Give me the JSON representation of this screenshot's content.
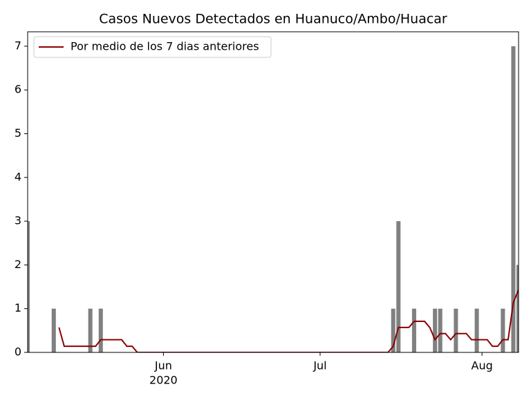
{
  "chart_data": {
    "type": "bar_line",
    "title": "Casos Nuevos Detectados en Huanuco/Ambo/Huacar",
    "x": [
      0,
      1,
      2,
      3,
      4,
      5,
      6,
      7,
      8,
      9,
      10,
      11,
      12,
      13,
      14,
      15,
      16,
      17,
      18,
      19,
      20,
      21,
      22,
      23,
      24,
      25,
      26,
      27,
      28,
      29,
      30,
      31,
      32,
      33,
      34,
      35,
      36,
      37,
      38,
      39,
      40,
      41,
      42,
      43,
      44,
      45,
      46,
      47,
      48,
      49,
      50,
      51,
      52,
      53,
      54,
      55,
      56,
      57,
      58,
      59,
      60,
      61,
      62,
      63,
      64,
      65,
      66,
      67,
      68,
      69,
      70,
      71,
      72,
      73,
      74,
      75,
      76,
      77,
      78,
      79,
      80,
      81,
      82,
      83,
      84,
      85,
      86,
      87,
      88,
      89,
      90,
      91,
      92,
      93,
      94
    ],
    "series": [
      {
        "kind": "bar",
        "color": "#808080",
        "values": [
          3,
          0,
          0,
          0,
          0,
          1,
          0,
          0,
          0,
          0,
          0,
          0,
          1,
          0,
          1,
          0,
          0,
          0,
          0,
          0,
          0,
          0,
          0,
          0,
          0,
          0,
          0,
          0,
          0,
          0,
          0,
          0,
          0,
          0,
          0,
          0,
          0,
          0,
          0,
          0,
          0,
          0,
          0,
          0,
          0,
          0,
          0,
          0,
          0,
          0,
          0,
          0,
          0,
          0,
          0,
          0,
          0,
          0,
          0,
          0,
          0,
          0,
          0,
          0,
          0,
          0,
          0,
          0,
          0,
          0,
          1,
          3,
          0,
          0,
          1,
          0,
          0,
          0,
          1,
          1,
          0,
          0,
          1,
          0,
          0,
          0,
          1,
          0,
          0,
          0,
          0,
          1,
          0,
          7,
          2
        ]
      },
      {
        "kind": "line",
        "name": "Por medio de los 7 dias anteriores",
        "color": "#8b0000",
        "values": [
          null,
          null,
          null,
          null,
          null,
          null,
          0.57,
          0.14,
          0.14,
          0.14,
          0.14,
          0.14,
          0.14,
          0.14,
          0.29,
          0.29,
          0.29,
          0.29,
          0.29,
          0.14,
          0.14,
          0,
          0,
          0,
          0,
          0,
          0,
          0,
          0,
          0,
          0,
          0,
          0,
          0,
          0,
          0,
          0,
          0,
          0,
          0,
          0,
          0,
          0,
          0,
          0,
          0,
          0,
          0,
          0,
          0,
          0,
          0,
          0,
          0,
          0,
          0,
          0,
          0,
          0,
          0,
          0,
          0,
          0,
          0,
          0,
          0,
          0,
          0,
          0,
          0,
          0.14,
          0.57,
          0.57,
          0.57,
          0.71,
          0.71,
          0.71,
          0.57,
          0.29,
          0.43,
          0.43,
          0.29,
          0.43,
          0.43,
          0.43,
          0.29,
          0.29,
          0.29,
          0.29,
          0.14,
          0.14,
          0.29,
          0.29,
          1.14,
          1.43
        ]
      }
    ],
    "xlim": [
      0,
      94
    ],
    "xticks": [
      {
        "value": 26,
        "label": "Jun"
      },
      {
        "value": 56,
        "label": "Jul"
      },
      {
        "value": 87,
        "label": "Aug"
      }
    ],
    "x_year_label": "2020",
    "ylim": [
      0,
      7.33
    ],
    "yticks": [
      0,
      1,
      2,
      3,
      4,
      5,
      6,
      7
    ],
    "legend": "upper left"
  }
}
